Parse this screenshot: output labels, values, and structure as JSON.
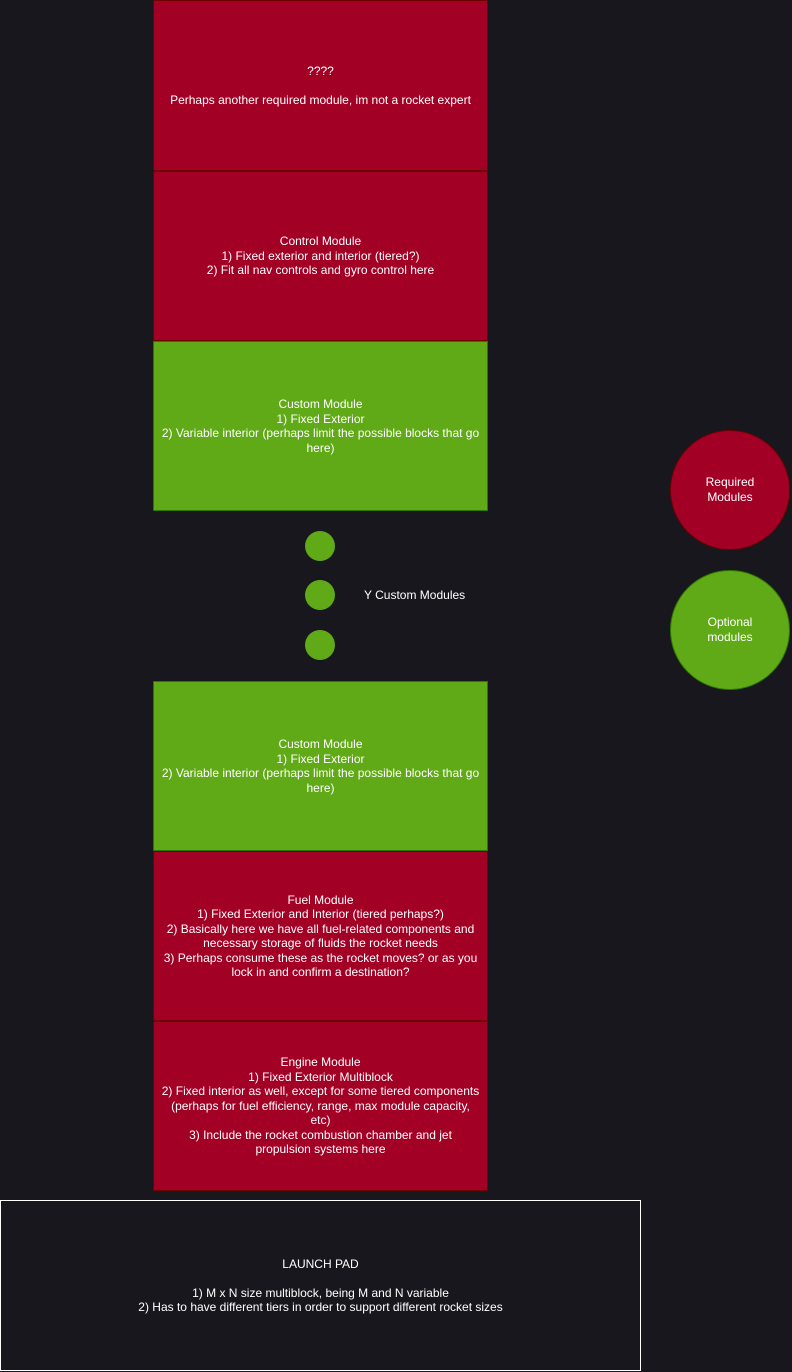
{
  "modules": {
    "unknown": "????\n\nPerhaps another required module, im not a rocket expert",
    "control": "Control Module\n1) Fixed exterior and interior (tiered?)\n2) Fit all nav controls and gyro control here",
    "custom_top": "Custom Module\n1) Fixed Exterior\n2) Variable interior (perhaps limit the possible blocks that go here)",
    "custom_bottom": "Custom Module\n1) Fixed Exterior\n2) Variable interior (perhaps limit the possible blocks that go here)",
    "fuel": "Fuel Module\n1) Fixed Exterior and Interior (tiered perhaps?)\n2) Basically here we have all fuel-related components and necessary storage of fluids the rocket needs\n3) Perhaps consume these as the rocket moves? or as you lock in and confirm a destination?",
    "engine": "Engine Module\n1) Fixed Exterior Multiblock\n2) Fixed interior as well, except for some tiered components (perhaps for fuel efficiency, range, max module capacity, etc)\n3) Include the rocket combustion chamber and jet propulsion systems here"
  },
  "repeat_label": "Y Custom Modules",
  "legend": {
    "required": "Required\nModules",
    "optional": "Optional\nmodules"
  },
  "launch_pad": "LAUNCH PAD\n\n1) M x N size multiblock, being M and N variable\n2) Has to have different tiers in order to support different rocket sizes",
  "colors": {
    "required": "#a20025",
    "optional": "#60a917",
    "background": "#18171e"
  }
}
